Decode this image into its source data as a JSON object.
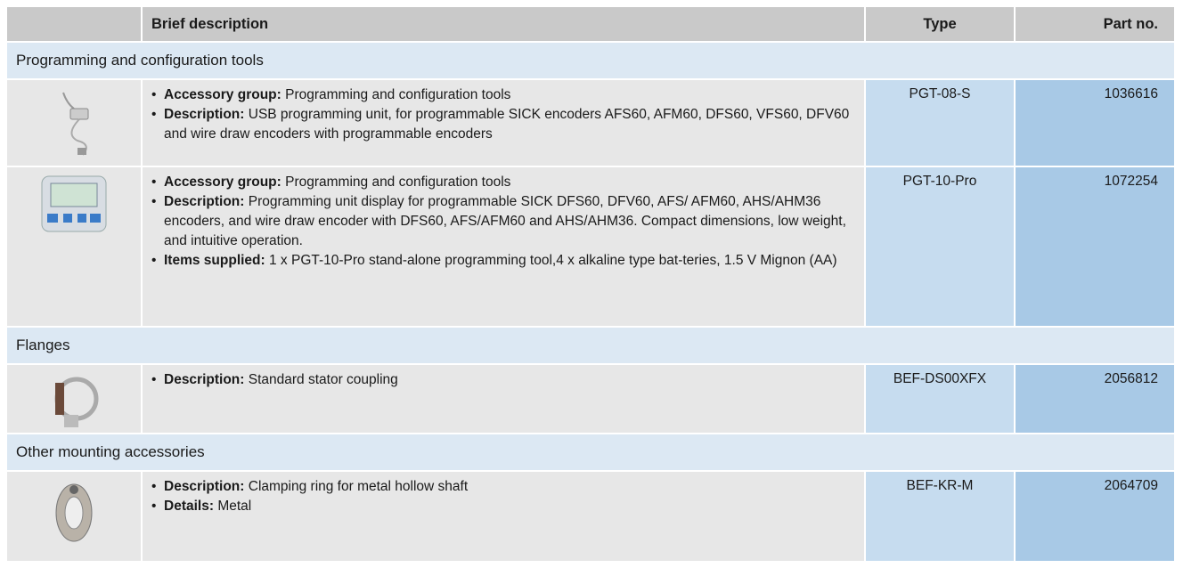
{
  "header": {
    "columns": [
      "Brief description",
      "Type",
      "Part no."
    ]
  },
  "groups": [
    {
      "title": "Programming and configuration tools",
      "items": [
        {
          "bullets": [
            {
              "label": "Accessory group:",
              "text": "Programming and configuration tools"
            },
            {
              "label": "Description:",
              "text": "USB programming unit, for programmable SICK encoders AFS60, AFM60, DFS60, VFS60, DFV60 and wire draw encoders with programmable encoders"
            }
          ],
          "type": "PGT-08-S",
          "part_no": "1036616"
        },
        {
          "bullets": [
            {
              "label": "Accessory group:",
              "text": "Programming and configuration tools"
            },
            {
              "label": "Description:",
              "text": "Programming unit display for programmable SICK DFS60, DFV60, AFS/ AFM60, AHS/AHM36 encoders, and wire draw encoder with DFS60, AFS/AFM60 and AHS/AHM36. Compact dimensions, low weight, and intuitive operation."
            },
            {
              "label": "Items supplied:",
              "text": "1 x PGT-10-Pro stand-alone programming tool,4 x alkaline type bat-teries, 1.5 V Mignon (AA)"
            }
          ],
          "type": "PGT-10-Pro",
          "part_no": "1072254"
        }
      ]
    },
    {
      "title": "Flanges",
      "items": [
        {
          "bullets": [
            {
              "label": "Description:",
              "text": "Standard stator coupling"
            }
          ],
          "type": "BEF-DS00XFX",
          "part_no": "2056812"
        }
      ]
    },
    {
      "title": "Other mounting accessories",
      "items": [
        {
          "bullets": [
            {
              "label": "Description:",
              "text": "Clamping ring for metal hollow shaft"
            },
            {
              "label": "Details:",
              "text": "Metal"
            }
          ],
          "type": "BEF-KR-M",
          "part_no": "2064709"
        }
      ]
    }
  ]
}
